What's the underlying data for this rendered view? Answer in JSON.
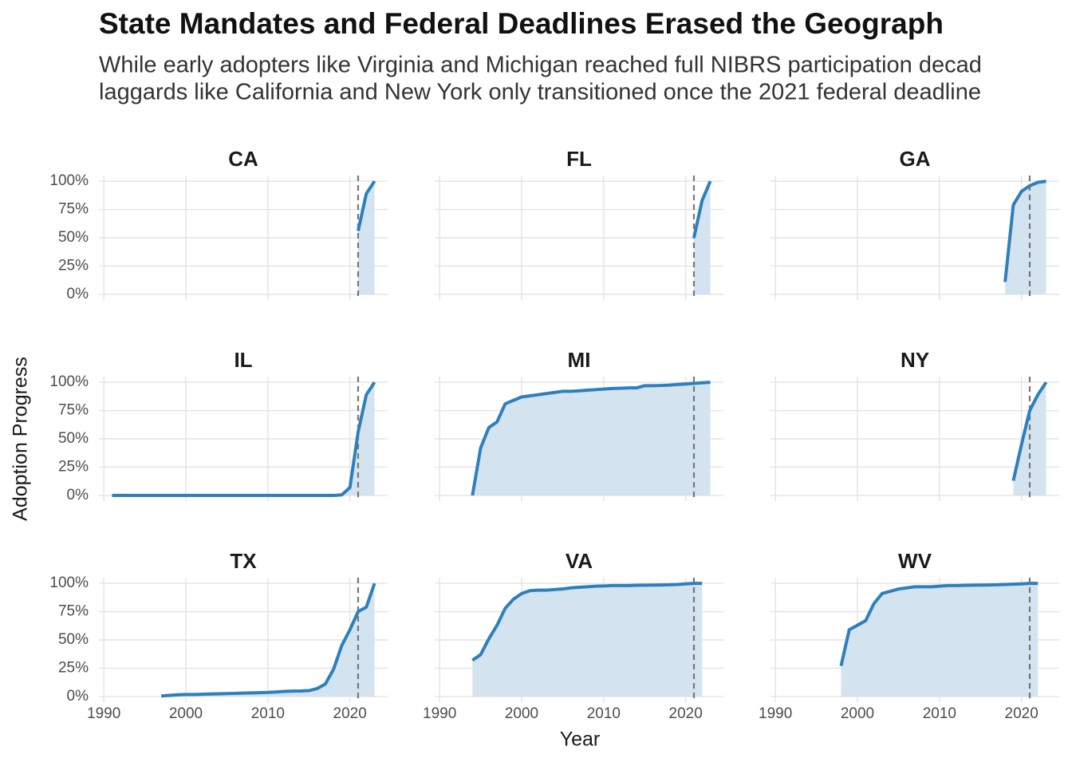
{
  "chart_data": {
    "type": "line",
    "title": "State Mandates and Federal Deadlines Erased the Geograph",
    "subtitle": [
      "While early adopters like Virginia and Michigan reached full NIBRS participation decad",
      "laggards like California and New York only transitioned once the 2021 federal deadline"
    ],
    "xlabel": "Year",
    "ylabel": "Adoption Progress",
    "color": "#2e7fbb",
    "fill": "#d3e4f0",
    "deadline": 2021,
    "xlim": [
      1989.4,
      2024.6
    ],
    "xticks": [
      1990,
      2000,
      2010,
      2020
    ],
    "ylim": [
      -5,
      105
    ],
    "yticks": [
      {
        "value": 0,
        "label": "0%"
      },
      {
        "value": 25,
        "label": "25%"
      },
      {
        "value": 50,
        "label": "50%"
      },
      {
        "value": 75,
        "label": "75%"
      },
      {
        "value": 100,
        "label": "100%"
      }
    ],
    "grid": true,
    "panels": [
      {
        "name": "CA",
        "x": [
          2021,
          2022,
          2023
        ],
        "values": [
          56,
          89,
          100
        ]
      },
      {
        "name": "FL",
        "x": [
          2021,
          2022,
          2023
        ],
        "values": [
          50,
          83,
          100
        ]
      },
      {
        "name": "GA",
        "x": [
          2018,
          2019,
          2020,
          2021,
          2022,
          2023
        ],
        "values": [
          11,
          79,
          91,
          96,
          99,
          100
        ]
      },
      {
        "name": "IL",
        "x": [
          1991,
          1992,
          1993,
          1994,
          1995,
          1996,
          1997,
          1998,
          1999,
          2000,
          2001,
          2002,
          2003,
          2004,
          2005,
          2006,
          2007,
          2008,
          2009,
          2010,
          2011,
          2012,
          2013,
          2014,
          2015,
          2016,
          2017,
          2018,
          2019,
          2020,
          2021,
          2022,
          2023
        ],
        "values": [
          0,
          0,
          0,
          0,
          0,
          0,
          0,
          0,
          0,
          0,
          0,
          0,
          0,
          0,
          0,
          0,
          0,
          0,
          0,
          0,
          0,
          0,
          0,
          0,
          0,
          0,
          0,
          0,
          0.5,
          7,
          56,
          89,
          100
        ]
      },
      {
        "name": "MI",
        "x": [
          1994,
          1995,
          1996,
          1997,
          1998,
          1999,
          2000,
          2001,
          2002,
          2003,
          2004,
          2005,
          2006,
          2007,
          2008,
          2009,
          2010,
          2011,
          2012,
          2013,
          2014,
          2015,
          2016,
          2017,
          2018,
          2019,
          2020,
          2021,
          2022,
          2023
        ],
        "values": [
          0,
          42,
          60,
          65,
          81,
          84,
          87,
          88,
          89,
          90,
          91,
          92,
          92,
          92.5,
          93,
          93.5,
          94,
          94.5,
          94.7,
          95,
          95,
          97,
          97,
          97.2,
          97.5,
          98,
          98.5,
          99,
          99.5,
          100
        ]
      },
      {
        "name": "NY",
        "x": [
          2019,
          2020,
          2021,
          2022,
          2023
        ],
        "values": [
          13,
          45,
          75,
          89,
          100
        ]
      },
      {
        "name": "TX",
        "x": [
          1997,
          1998,
          1999,
          2000,
          2001,
          2002,
          2003,
          2004,
          2005,
          2006,
          2007,
          2008,
          2009,
          2010,
          2011,
          2012,
          2013,
          2014,
          2015,
          2016,
          2017,
          2018,
          2019,
          2020,
          2021,
          2022,
          2023
        ],
        "values": [
          0.5,
          1,
          1.5,
          1.8,
          1.8,
          2,
          2.2,
          2.4,
          2.6,
          2.8,
          3,
          3.2,
          3.4,
          3.6,
          4,
          4.5,
          4.8,
          4.9,
          5.2,
          7,
          11,
          24,
          45,
          59,
          75,
          79,
          100
        ]
      },
      {
        "name": "VA",
        "x": [
          1994,
          1995,
          1996,
          1997,
          1998,
          1999,
          2000,
          2001,
          2002,
          2003,
          2004,
          2005,
          2006,
          2007,
          2008,
          2009,
          2010,
          2011,
          2012,
          2013,
          2014,
          2015,
          2016,
          2017,
          2018,
          2019,
          2020,
          2021,
          2022
        ],
        "values": [
          32,
          37,
          51,
          63,
          78,
          86,
          91,
          93.5,
          94,
          94,
          94.5,
          95,
          96,
          96.5,
          97,
          97.5,
          97.7,
          98,
          98,
          98,
          98.3,
          98.4,
          98.5,
          98.6,
          98.7,
          99,
          99.5,
          100,
          100
        ]
      },
      {
        "name": "WV",
        "x": [
          1998,
          1999,
          2000,
          2001,
          2002,
          2003,
          2004,
          2005,
          2006,
          2007,
          2008,
          2009,
          2010,
          2011,
          2012,
          2013,
          2014,
          2015,
          2016,
          2017,
          2018,
          2019,
          2020,
          2021,
          2022
        ],
        "values": [
          27,
          59,
          63,
          67,
          82,
          91,
          93,
          95,
          96,
          97,
          97,
          97,
          97.5,
          98,
          98,
          98.2,
          98.4,
          98.5,
          98.6,
          98.7,
          99,
          99.3,
          99.5,
          100,
          100
        ]
      }
    ]
  }
}
